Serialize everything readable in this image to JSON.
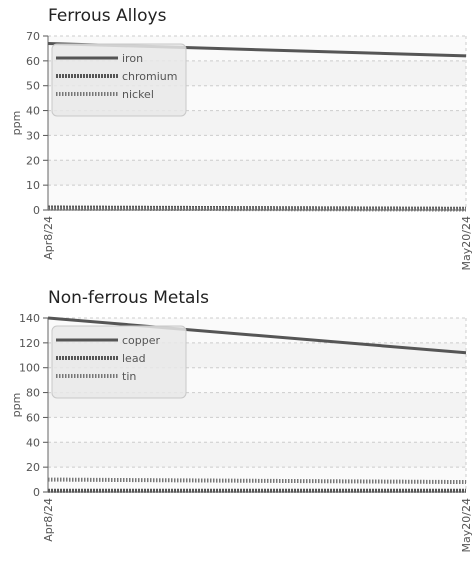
{
  "chart_data": [
    {
      "type": "line",
      "title": "Ferrous Alloys",
      "ylabel": "ppm",
      "xlabel": "",
      "ylim": [
        0,
        70
      ],
      "yticks": [
        0,
        10,
        20,
        30,
        40,
        50,
        60,
        70
      ],
      "x": [
        "Apr8/24",
        "May20/24"
      ],
      "xtick_labels": [
        "Apr8/24",
        "May20/24"
      ],
      "legend_position": "top-left",
      "grid": true,
      "series": [
        {
          "name": "iron",
          "values": [
            67,
            62
          ],
          "color": "#555555",
          "style": "solid"
        },
        {
          "name": "chromium",
          "values": [
            1,
            0.5
          ],
          "color": "#555555",
          "style": "dotted"
        },
        {
          "name": "nickel",
          "values": [
            0.5,
            0.2
          ],
          "color": "#777777",
          "style": "dashed"
        }
      ]
    },
    {
      "type": "line",
      "title": "Non-ferrous Metals",
      "ylabel": "ppm",
      "xlabel": "",
      "ylim": [
        0,
        140
      ],
      "yticks": [
        0,
        20,
        40,
        60,
        80,
        100,
        120,
        140
      ],
      "x": [
        "Apr8/24",
        "May20/24"
      ],
      "xtick_labels": [
        "Apr8/24",
        "May20/24"
      ],
      "legend_position": "top-left",
      "grid": true,
      "series": [
        {
          "name": "copper",
          "values": [
            140,
            112
          ],
          "color": "#555555",
          "style": "solid"
        },
        {
          "name": "lead",
          "values": [
            1,
            1
          ],
          "color": "#555555",
          "style": "dotted"
        },
        {
          "name": "tin",
          "values": [
            10,
            8
          ],
          "color": "#777777",
          "style": "dashed"
        }
      ]
    }
  ]
}
